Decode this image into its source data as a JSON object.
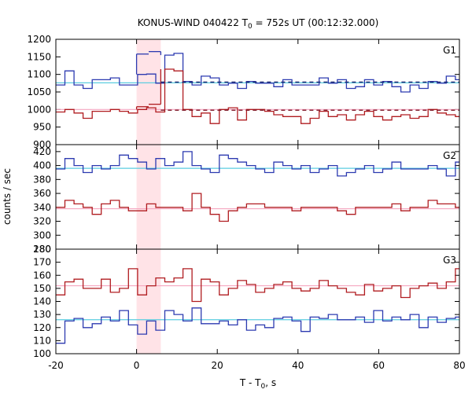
{
  "chart_data": {
    "type": "line",
    "title": {
      "prefix": "KONUS-WIND 040422 T",
      "sub": "0",
      "suffix": " = 752s UT (00:12:32.000)"
    },
    "xlabel": {
      "prefix": "T - T",
      "sub": "0",
      "suffix": ", s"
    },
    "ylabel": "counts / sec",
    "xlim": [
      -20,
      80
    ],
    "xticks": [
      -20,
      0,
      20,
      40,
      60,
      80
    ],
    "highlight": {
      "x0": 0,
      "x1": 6,
      "color": "#ff9aa8"
    },
    "bin_x0": -20,
    "bin_width": 2.25,
    "panels": [
      {
        "label": "G1",
        "ylim": [
          900,
          1200
        ],
        "yticks": [
          900,
          950,
          1000,
          1050,
          1100,
          1150,
          1200
        ],
        "series": [
          {
            "color": "#2c3ab0",
            "values": [
              1070,
              1110,
              1070,
              1060,
              1085,
              1085,
              1090,
              1070,
              1070,
              1100,
              1101,
              1075,
              1155,
              1160,
              1080,
              1070,
              1095,
              1090,
              1070,
              1075,
              1060,
              1080,
              1075,
              1075,
              1065,
              1085,
              1070,
              1070,
              1070,
              1090,
              1075,
              1085,
              1060,
              1065,
              1085,
              1070,
              1080,
              1065,
              1050,
              1070,
              1060,
              1080,
              1075,
              1095,
              1085,
              1075
            ],
            "upper_values": [
              1158,
              1165
            ]
          },
          {
            "color": "#b01c20",
            "values": [
              993,
              1000,
              990,
              975,
              995,
              995,
              1000,
              995,
              990,
              1000,
              1005,
              993,
              1115,
              1110,
              1000,
              980,
              990,
              960,
              1000,
              1005,
              970,
              1000,
              1000,
              995,
              985,
              980,
              980,
              960,
              975,
              995,
              980,
              985,
              970,
              985,
              995,
              980,
              970,
              980,
              985,
              975,
              980,
              1000,
              990,
              985,
              980,
              990
            ],
            "upper_values": [
              1008,
              1015
            ]
          },
          {
            "color": "#5ccde0",
            "level": 1076
          },
          {
            "color": "#f5a6c0",
            "level": 1000
          },
          {
            "color": "#1c2670",
            "level": 1078,
            "dashed": true,
            "from_x": 6
          },
          {
            "color": "#7a1020",
            "level": 998,
            "dashed": true,
            "from_x": 6
          }
        ]
      },
      {
        "label": "G2",
        "ylim": [
          280,
          430
        ],
        "yticks": [
          280,
          300,
          320,
          340,
          360,
          380,
          400,
          420
        ],
        "series": [
          {
            "color": "#2c3ab0",
            "values": [
              395,
              410,
              400,
              390,
              400,
              395,
              400,
              415,
              410,
              405,
              395,
              410,
              400,
              405,
              420,
              400,
              395,
              390,
              415,
              410,
              405,
              400,
              395,
              390,
              405,
              400,
              395,
              400,
              390,
              395,
              400,
              385,
              390,
              395,
              400,
              390,
              395,
              405,
              395,
              395,
              395,
              400,
              395,
              385,
              405,
              400
            ]
          },
          {
            "color": "#b01c20",
            "values": [
              340,
              350,
              345,
              340,
              330,
              345,
              350,
              340,
              335,
              335,
              345,
              340,
              340,
              340,
              335,
              360,
              340,
              330,
              320,
              335,
              340,
              345,
              345,
              340,
              340,
              340,
              335,
              340,
              340,
              340,
              340,
              335,
              330,
              340,
              340,
              340,
              340,
              345,
              335,
              340,
              340,
              350,
              345,
              345,
              340,
              335
            ]
          },
          {
            "color": "#5ccde0",
            "level": 396
          },
          {
            "color": "#f5a6c0",
            "level": 338
          }
        ]
      },
      {
        "label": "G3",
        "ylim": [
          100,
          180
        ],
        "yticks": [
          100,
          110,
          120,
          130,
          140,
          150,
          160,
          170,
          180
        ],
        "series": [
          {
            "color": "#2c3ab0",
            "values": [
              108,
              125,
              127,
              120,
              123,
              128,
              125,
              133,
              122,
              115,
              125,
              118,
              133,
              130,
              125,
              135,
              123,
              123,
              125,
              122,
              126,
              118,
              122,
              120,
              127,
              128,
              125,
              117,
              128,
              127,
              130,
              126,
              126,
              128,
              124,
              133,
              125,
              128,
              126,
              130,
              120,
              128,
              124,
              127,
              128,
              127
            ]
          },
          {
            "color": "#b01c20",
            "values": [
              145,
              155,
              157,
              150,
              150,
              157,
              147,
              150,
              165,
              145,
              152,
              158,
              155,
              158,
              165,
              140,
              157,
              155,
              145,
              150,
              156,
              153,
              147,
              150,
              153,
              155,
              150,
              148,
              150,
              156,
              152,
              150,
              147,
              145,
              153,
              148,
              150,
              152,
              143,
              150,
              152,
              154,
              150,
              155,
              165,
              150
            ]
          },
          {
            "color": "#5ccde0",
            "level": 126
          },
          {
            "color": "#f5a6c0",
            "level": 152
          }
        ]
      }
    ]
  }
}
